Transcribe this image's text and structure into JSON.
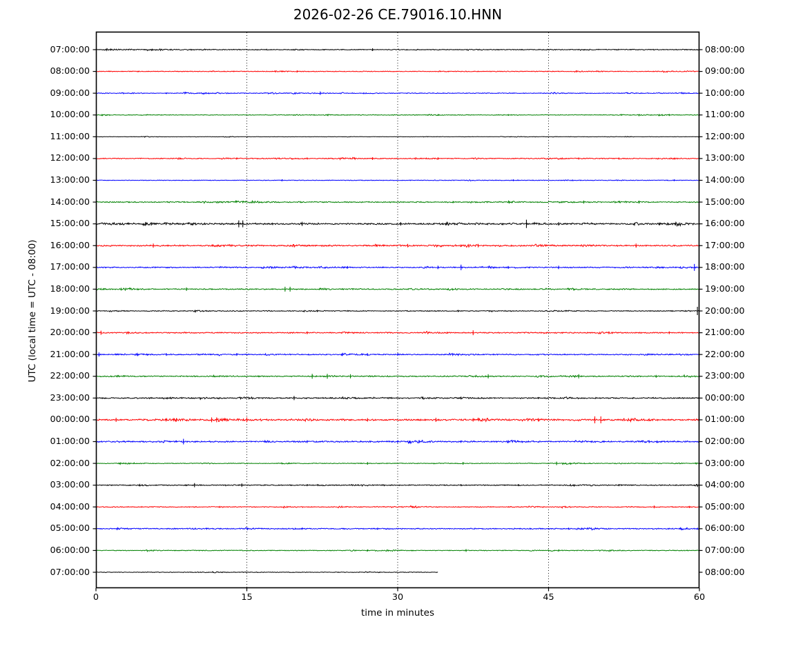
{
  "chart_data": {
    "type": "line",
    "subtype": "helicorder-dayplot",
    "title": "2026-02-26 CE.79016.10.HNN",
    "xlabel": "time in minutes",
    "ylabel": "UTC (local time = UTC - 08:00)",
    "x_range_minutes": [
      0,
      60
    ],
    "x_ticks": [
      0,
      15,
      30,
      45,
      60
    ],
    "grid": {
      "vertical_dotted_at_minutes": [
        15,
        30,
        45
      ]
    },
    "legend": "none",
    "colors": {
      "black": "#000000",
      "red": "#ff0000",
      "blue": "#0000ff",
      "green": "#008000"
    },
    "traces": [
      {
        "left": "07:00:00",
        "right": "08:00:00",
        "color": "black",
        "noise": 0.7,
        "end_min": 60,
        "spikes": [
          [
            27.5,
            2
          ]
        ]
      },
      {
        "left": "08:00:00",
        "right": "09:00:00",
        "color": "red",
        "noise": 0.6,
        "end_min": 60,
        "spikes": [
          [
            20,
            1.5
          ],
          [
            47.8,
            1.5
          ]
        ]
      },
      {
        "left": "09:00:00",
        "right": "10:00:00",
        "color": "blue",
        "noise": 0.6,
        "end_min": 60,
        "spikes": [
          [
            22.3,
            2.5
          ],
          [
            7,
            1.2
          ]
        ]
      },
      {
        "left": "10:00:00",
        "right": "11:00:00",
        "color": "green",
        "noise": 0.55,
        "end_min": 60,
        "spikes": [
          [
            34,
            1.2
          ],
          [
            41,
            1.2
          ],
          [
            57,
            1.5
          ]
        ]
      },
      {
        "left": "11:00:00",
        "right": "12:00:00",
        "color": "black",
        "noise": 0.35,
        "end_min": 60,
        "spikes": []
      },
      {
        "left": "12:00:00",
        "right": "13:00:00",
        "color": "red",
        "noise": 0.7,
        "end_min": 60,
        "spikes": [
          [
            14,
            1.5
          ],
          [
            21,
            1.5
          ],
          [
            27.5,
            2
          ],
          [
            34,
            1.8
          ],
          [
            48,
            1.5
          ],
          [
            52,
            1.5
          ]
        ]
      },
      {
        "left": "13:00:00",
        "right": "14:00:00",
        "color": "blue",
        "noise": 0.5,
        "end_min": 60,
        "spikes": [
          [
            18.5,
            1.5
          ],
          [
            41.5,
            1.3
          ],
          [
            57.5,
            1.3
          ]
        ]
      },
      {
        "left": "14:00:00",
        "right": "15:00:00",
        "color": "green",
        "noise": 0.9,
        "end_min": 60,
        "spikes": [
          [
            35.5,
            1.5
          ],
          [
            48.5,
            2.2
          ],
          [
            54,
            2.2
          ]
        ]
      },
      {
        "left": "15:00:00",
        "right": "16:00:00",
        "color": "black",
        "noise": 1.3,
        "end_min": 60,
        "spikes": [
          [
            5.5,
            2.5
          ],
          [
            14.2,
            5
          ],
          [
            14.6,
            5
          ],
          [
            20.5,
            3
          ],
          [
            30.3,
            2.5
          ],
          [
            42.8,
            6
          ],
          [
            46,
            2.5
          ],
          [
            56,
            2
          ]
        ]
      },
      {
        "left": "16:00:00",
        "right": "17:00:00",
        "color": "red",
        "noise": 1.1,
        "end_min": 60,
        "spikes": [
          [
            5.7,
            3
          ],
          [
            31,
            2.5
          ],
          [
            38,
            2.5
          ],
          [
            53.7,
            3
          ]
        ]
      },
      {
        "left": "17:00:00",
        "right": "18:00:00",
        "color": "blue",
        "noise": 0.9,
        "end_min": 60,
        "spikes": [
          [
            25,
            2
          ],
          [
            34,
            2.5
          ],
          [
            36.3,
            4
          ],
          [
            41,
            2
          ],
          [
            46,
            2.5
          ],
          [
            59.5,
            5
          ]
        ]
      },
      {
        "left": "18:00:00",
        "right": "19:00:00",
        "color": "green",
        "noise": 0.9,
        "end_min": 60,
        "spikes": [
          [
            2.5,
            2
          ],
          [
            9,
            2.5
          ],
          [
            18.8,
            3.5
          ],
          [
            19.3,
            3.5
          ]
        ]
      },
      {
        "left": "19:00:00",
        "right": "20:00:00",
        "color": "black",
        "noise": 0.7,
        "end_min": 60,
        "spikes": [
          [
            22,
            1.5
          ],
          [
            36,
            1.5
          ],
          [
            59.8,
            6
          ]
        ]
      },
      {
        "left": "20:00:00",
        "right": "21:00:00",
        "color": "red",
        "noise": 0.9,
        "end_min": 60,
        "spikes": [
          [
            0.5,
            3
          ],
          [
            21,
            2
          ],
          [
            37.5,
            3.5
          ],
          [
            51,
            2
          ],
          [
            57,
            2
          ]
        ]
      },
      {
        "left": "21:00:00",
        "right": "22:00:00",
        "color": "blue",
        "noise": 0.9,
        "end_min": 60,
        "spikes": [
          [
            0.3,
            3
          ],
          [
            7,
            2
          ],
          [
            14,
            2
          ],
          [
            27,
            2
          ],
          [
            30,
            2
          ]
        ]
      },
      {
        "left": "22:00:00",
        "right": "23:00:00",
        "color": "green",
        "noise": 0.9,
        "end_min": 60,
        "spikes": [
          [
            21.5,
            3.5
          ],
          [
            23,
            3.5
          ],
          [
            25.3,
            3
          ],
          [
            39,
            3
          ],
          [
            48,
            3
          ],
          [
            55.7,
            2
          ]
        ]
      },
      {
        "left": "23:00:00",
        "right": "00:00:00",
        "color": "black",
        "noise": 1.0,
        "end_min": 60,
        "spikes": [
          [
            19.7,
            3
          ],
          [
            36.3,
            2
          ],
          [
            44,
            1.5
          ]
        ]
      },
      {
        "left": "00:00:00",
        "right": "01:00:00",
        "color": "red",
        "noise": 1.3,
        "end_min": 60,
        "spikes": [
          [
            2,
            3
          ],
          [
            8,
            2.5
          ],
          [
            11.5,
            3.5
          ],
          [
            12,
            3.5
          ],
          [
            15,
            3.5
          ],
          [
            27,
            2.5
          ],
          [
            33.8,
            3
          ],
          [
            37.5,
            2.5
          ],
          [
            44,
            2.5
          ],
          [
            49.6,
            5
          ],
          [
            50.2,
            5
          ],
          [
            55,
            2
          ]
        ]
      },
      {
        "left": "01:00:00",
        "right": "02:00:00",
        "color": "blue",
        "noise": 1.1,
        "end_min": 60,
        "spikes": [
          [
            8.7,
            4
          ],
          [
            21,
            2
          ],
          [
            30,
            2
          ],
          [
            41,
            2
          ],
          [
            55,
            2
          ]
        ]
      },
      {
        "left": "02:00:00",
        "right": "03:00:00",
        "color": "green",
        "noise": 0.6,
        "end_min": 60,
        "spikes": [
          [
            27,
            2
          ],
          [
            36.5,
            2
          ],
          [
            45.8,
            2.5
          ]
        ]
      },
      {
        "left": "03:00:00",
        "right": "04:00:00",
        "color": "black",
        "noise": 0.8,
        "end_min": 60,
        "spikes": [
          [
            9.8,
            3
          ],
          [
            14.5,
            2.5
          ],
          [
            21,
            1.5
          ],
          [
            36.3,
            1.5
          ],
          [
            42,
            1.5
          ],
          [
            52,
            1.5
          ]
        ]
      },
      {
        "left": "04:00:00",
        "right": "05:00:00",
        "color": "red",
        "noise": 0.7,
        "end_min": 60,
        "spikes": [
          [
            31.5,
            1.5
          ],
          [
            55.5,
            2
          ],
          [
            59,
            1.5
          ]
        ]
      },
      {
        "left": "05:00:00",
        "right": "06:00:00",
        "color": "blue",
        "noise": 0.8,
        "end_min": 60,
        "spikes": [
          [
            11,
            1.5
          ],
          [
            20.5,
            1.5
          ],
          [
            28,
            1.5
          ],
          [
            47,
            1.5
          ]
        ]
      },
      {
        "left": "06:00:00",
        "right": "07:00:00",
        "color": "green",
        "noise": 0.6,
        "end_min": 60,
        "spikes": [
          [
            27,
            1.5
          ],
          [
            36.8,
            2
          ],
          [
            46,
            1.5
          ]
        ]
      },
      {
        "left": "07:00:00",
        "right": "08:00:00",
        "color": "black",
        "noise": 0.5,
        "end_min": 34,
        "spikes": []
      }
    ]
  }
}
